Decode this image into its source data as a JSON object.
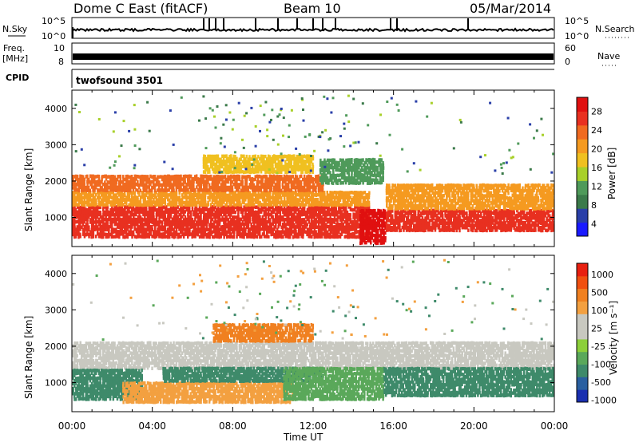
{
  "header": {
    "title": "Dome C East (fitACF)",
    "beam": "Beam 10",
    "date": "05/Mar/2014"
  },
  "panels": {
    "nsky": {
      "label": "N.Sky",
      "right_label": "N.Search",
      "yticks_left": [
        "10^5",
        "10^0"
      ],
      "yticks_right": [
        "10^5",
        "10^0"
      ]
    },
    "freq": {
      "label_top": "Freq.",
      "label_bottom": "[MHz]",
      "right_label": "Nave",
      "yticks_left": [
        "10",
        "8"
      ],
      "yticks_right": [
        "60",
        "0"
      ]
    },
    "cpid": {
      "label": "CPID",
      "text": "twofsound 3501"
    }
  },
  "axes": {
    "x_ticks": [
      "00:00",
      "04:00",
      "08:00",
      "12:00",
      "16:00",
      "20:00",
      "00:00"
    ],
    "x_label": "Time UT",
    "y_label": "Slant Range [km]",
    "y_ticks": [
      "1000",
      "2000",
      "3000",
      "4000"
    ]
  },
  "colorbars": {
    "power": {
      "label": "Power [dB]",
      "ticks": [
        "4",
        "8",
        "12",
        "16",
        "20",
        "24",
        "28"
      ],
      "colors": [
        "#1a1aff",
        "#2a3fa8",
        "#3b7a4a",
        "#4f9a5a",
        "#a8d02a",
        "#f0c020",
        "#f59a20",
        "#f06a20",
        "#e83020",
        "#e01010"
      ]
    },
    "velocity": {
      "label": "Velocity [m s⁻¹]",
      "ticks": [
        "1000",
        "500",
        "100",
        "25",
        "-25",
        "-100",
        "-500",
        "-1000"
      ],
      "colors": [
        "#1a2fb0",
        "#2a5fa0",
        "#3e8a6a",
        "#5aa85a",
        "#8ccf3a",
        "#c8c8c0",
        "#c8c8c0",
        "#f3a040",
        "#f08020",
        "#f05010",
        "#e82010"
      ]
    }
  },
  "chart_data": [
    {
      "type": "heatmap",
      "name": "power",
      "x_range_hours": [
        0,
        24
      ],
      "y_range_km": [
        200,
        4500
      ],
      "bands": [
        {
          "t0": 0,
          "t1": 14.8,
          "r0": 420,
          "r1": 1300,
          "color": "#e83020"
        },
        {
          "t0": 0,
          "t1": 14.8,
          "r0": 1300,
          "r1": 1700,
          "color": "#f59a20"
        },
        {
          "t0": 0,
          "t1": 12.5,
          "r0": 1700,
          "r1": 2150,
          "color": "#f06a20"
        },
        {
          "t0": 6.5,
          "t1": 12.0,
          "r0": 2200,
          "r1": 2700,
          "color": "#f0c020"
        },
        {
          "t0": 14.3,
          "t1": 15.6,
          "r0": 250,
          "r1": 1200,
          "color": "#e01010"
        },
        {
          "t0": 15.6,
          "t1": 24,
          "r0": 600,
          "r1": 1200,
          "color": "#e83020"
        },
        {
          "t0": 15.6,
          "t1": 24,
          "r0": 1200,
          "r1": 1900,
          "color": "#f59a20"
        },
        {
          "t0": 12.3,
          "t1": 15.5,
          "r0": 1900,
          "r1": 2600,
          "color": "#4f9a5a"
        }
      ]
    },
    {
      "type": "heatmap",
      "name": "velocity",
      "x_range_hours": [
        0,
        24
      ],
      "y_range_km": [
        200,
        4500
      ],
      "bands": [
        {
          "t0": 0,
          "t1": 24,
          "r0": 1350,
          "r1": 2100,
          "color": "#c8c8c0"
        },
        {
          "t0": 0,
          "t1": 3.5,
          "r0": 500,
          "r1": 1350,
          "color": "#3e8a6a"
        },
        {
          "t0": 2.5,
          "t1": 11.0,
          "r0": 420,
          "r1": 1000,
          "color": "#f3a040"
        },
        {
          "t0": 4.5,
          "t1": 12.5,
          "r0": 1000,
          "r1": 1400,
          "color": "#3e8a6a"
        },
        {
          "t0": 10.5,
          "t1": 15.5,
          "r0": 500,
          "r1": 1400,
          "color": "#5aa85a"
        },
        {
          "t0": 15.5,
          "t1": 24,
          "r0": 600,
          "r1": 1400,
          "color": "#3e8a6a"
        },
        {
          "t0": 7.0,
          "t1": 12.0,
          "r0": 2100,
          "r1": 2600,
          "color": "#f08020"
        }
      ]
    }
  ]
}
